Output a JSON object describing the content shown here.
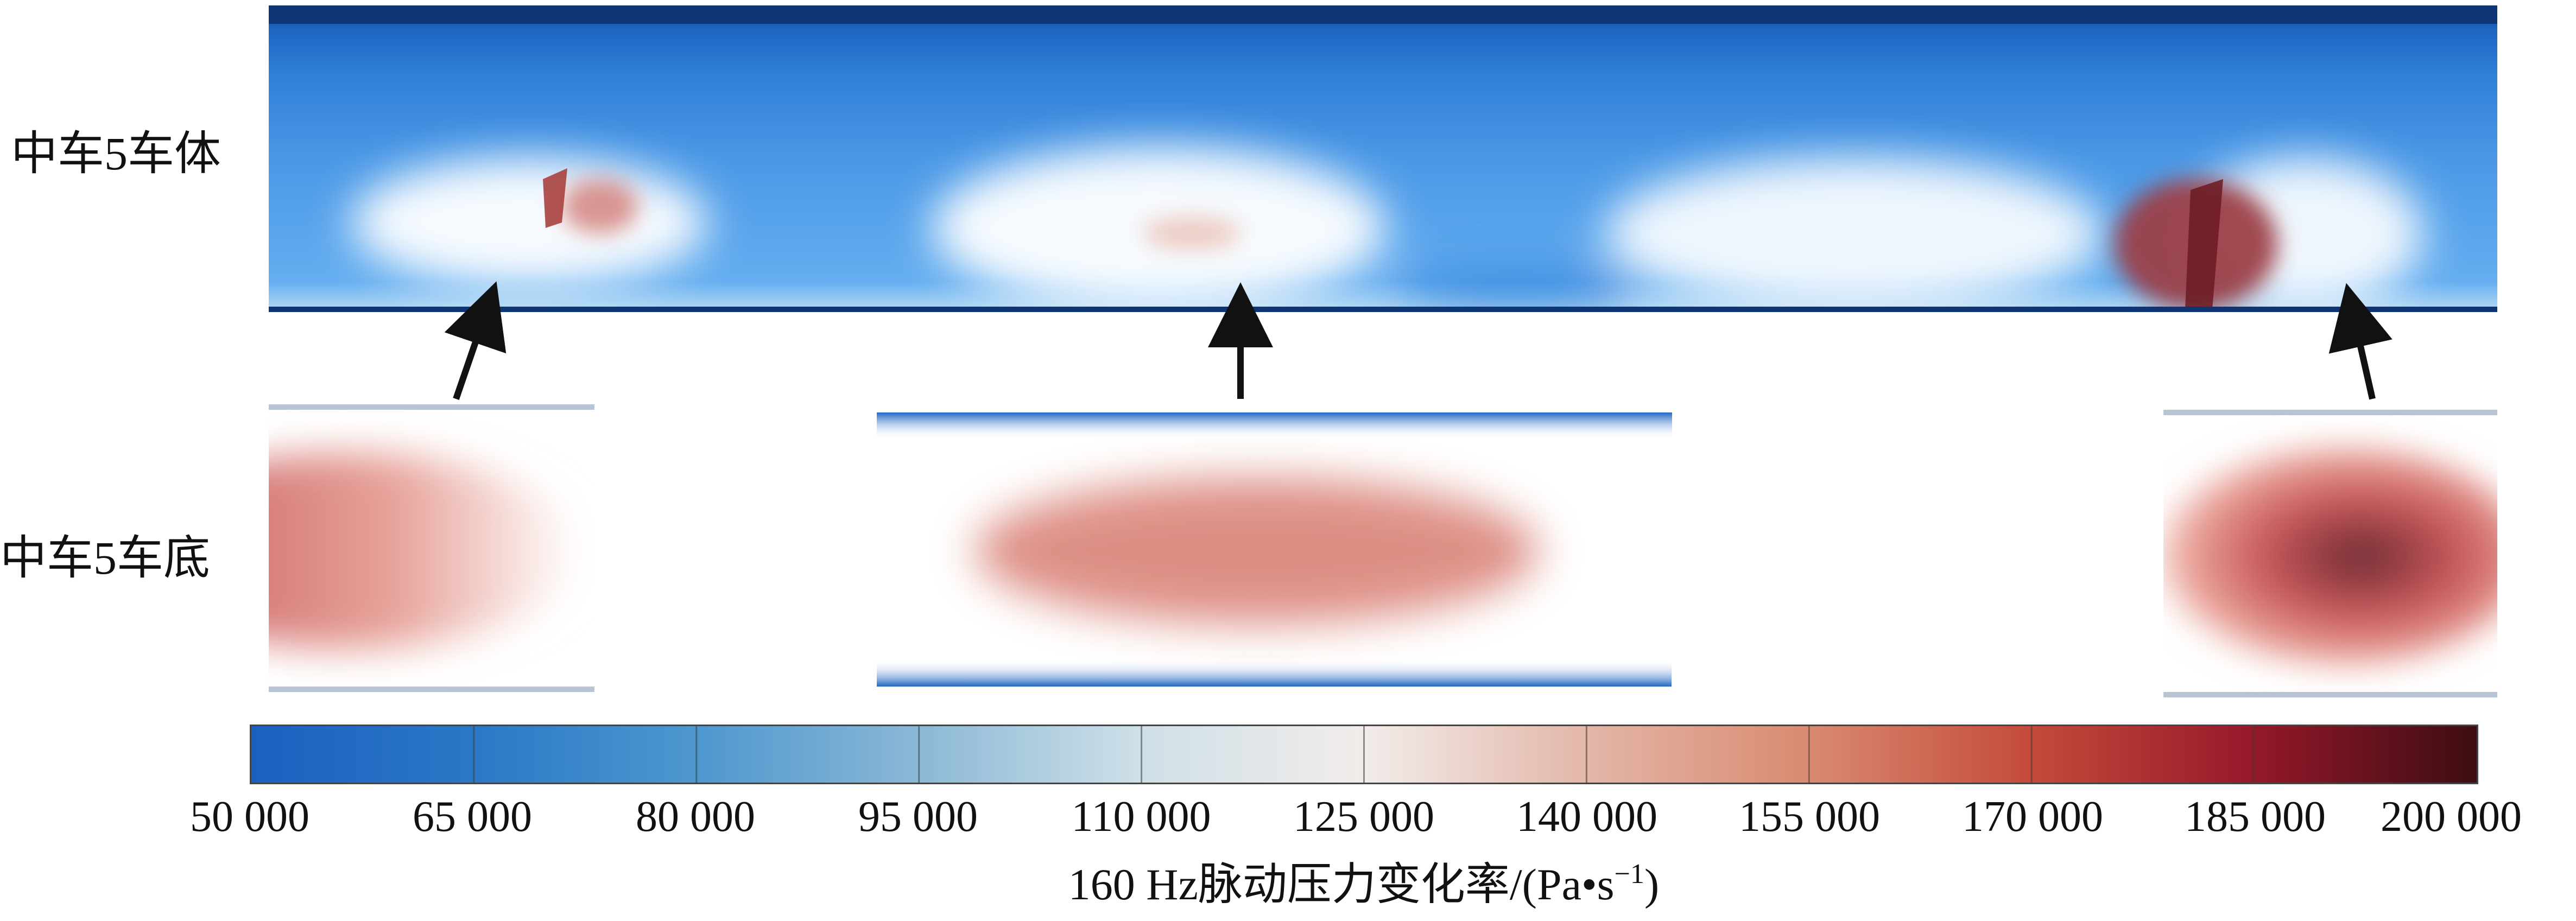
{
  "labels": {
    "body": "中车5车体",
    "floor": "中车5车底"
  },
  "colorbar": {
    "title_prefix": "160 Hz脉动压力变化率/(Pa•s",
    "title_exp": "−1",
    "title_suffix": ")",
    "min": 50000,
    "max": 200000,
    "ticks": [
      "50 000",
      "65 000",
      "80 000",
      "95 000",
      "110 000",
      "125 000",
      "140 000",
      "155 000",
      "170 000",
      "185 000",
      "200 000"
    ],
    "colors": [
      "#1c5fc0",
      "#2a78c6",
      "#4e97cf",
      "#8bb8d6",
      "#cfe0e8",
      "#f2ecea",
      "#e3b6a8",
      "#d98a70",
      "#c44a3a",
      "#94182a",
      "#3d0d12"
    ]
  },
  "colors": {
    "low": "#3b8ee0",
    "mid": "#ffffff",
    "high": "#c9595c",
    "peak": "#6b1a22"
  }
}
